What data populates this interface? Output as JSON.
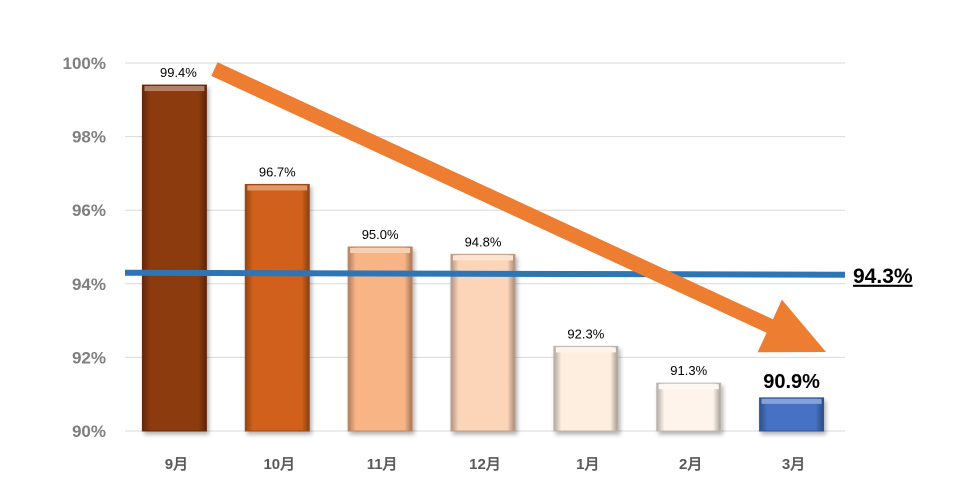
{
  "chart_data": {
    "type": "bar",
    "categories": [
      "9月",
      "10月",
      "11月",
      "12月",
      "1月",
      "2月",
      "3月"
    ],
    "values": [
      99.4,
      96.7,
      95.0,
      94.8,
      92.3,
      91.3,
      90.9
    ],
    "data_labels": [
      "99.4%",
      "96.7%",
      "95.0%",
      "94.8%",
      "92.3%",
      "91.3%",
      "90.9%"
    ],
    "highlight_index": 6,
    "bar_colors": [
      "#8b3a0f",
      "#d0611a",
      "#f9b486",
      "#fcd4b8",
      "#fdeee0",
      "#fef4ec",
      "#4472c4"
    ],
    "ylim": [
      90,
      100
    ],
    "yticks": [
      90,
      92,
      94,
      96,
      98,
      100
    ],
    "ytick_labels": [
      "90%",
      "92%",
      "94%",
      "96%",
      "98%",
      "100%"
    ],
    "grid": true,
    "reference_line": {
      "value": 94.3,
      "label": "94.3%",
      "color": "#2e75b6"
    },
    "trend_arrow": {
      "from_category": "9月",
      "to_category": "3月",
      "color": "#ed7d31"
    },
    "title": "",
    "xlabel": "",
    "ylabel": ""
  }
}
